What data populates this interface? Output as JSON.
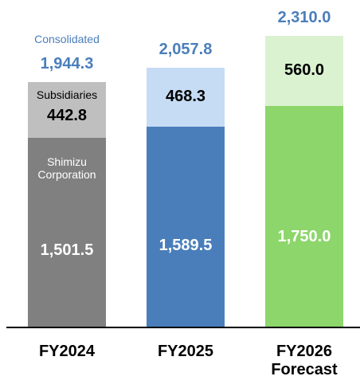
{
  "chart_data": {
    "type": "stacked_bar",
    "categories": [
      "FY2024",
      "FY2025",
      "FY2026 Forecast"
    ],
    "series": [
      {
        "name": "Shimizu Corporation",
        "colors": [
          "#808080",
          "#4a7ebb",
          "#8dd66b"
        ],
        "values": [
          1501.5,
          1589.5,
          1750.0
        ],
        "value_labels": [
          "1,501.5",
          "1,589.5",
          "1,750.0"
        ]
      },
      {
        "name": "Subsidiaries",
        "colors": [
          "#bfbfbf",
          "#c6dcf5",
          "#daf2d0"
        ],
        "values": [
          442.8,
          468.3,
          560.0
        ],
        "value_labels": [
          "442.8",
          "468.3",
          "560.0"
        ]
      }
    ],
    "totals": {
      "name": "Consolidated",
      "color": "#4a7ebb",
      "values": [
        1944.3,
        2057.8,
        2310.0
      ],
      "value_labels": [
        "1,944.3",
        "2,057.8",
        "2,310.0"
      ]
    }
  }
}
